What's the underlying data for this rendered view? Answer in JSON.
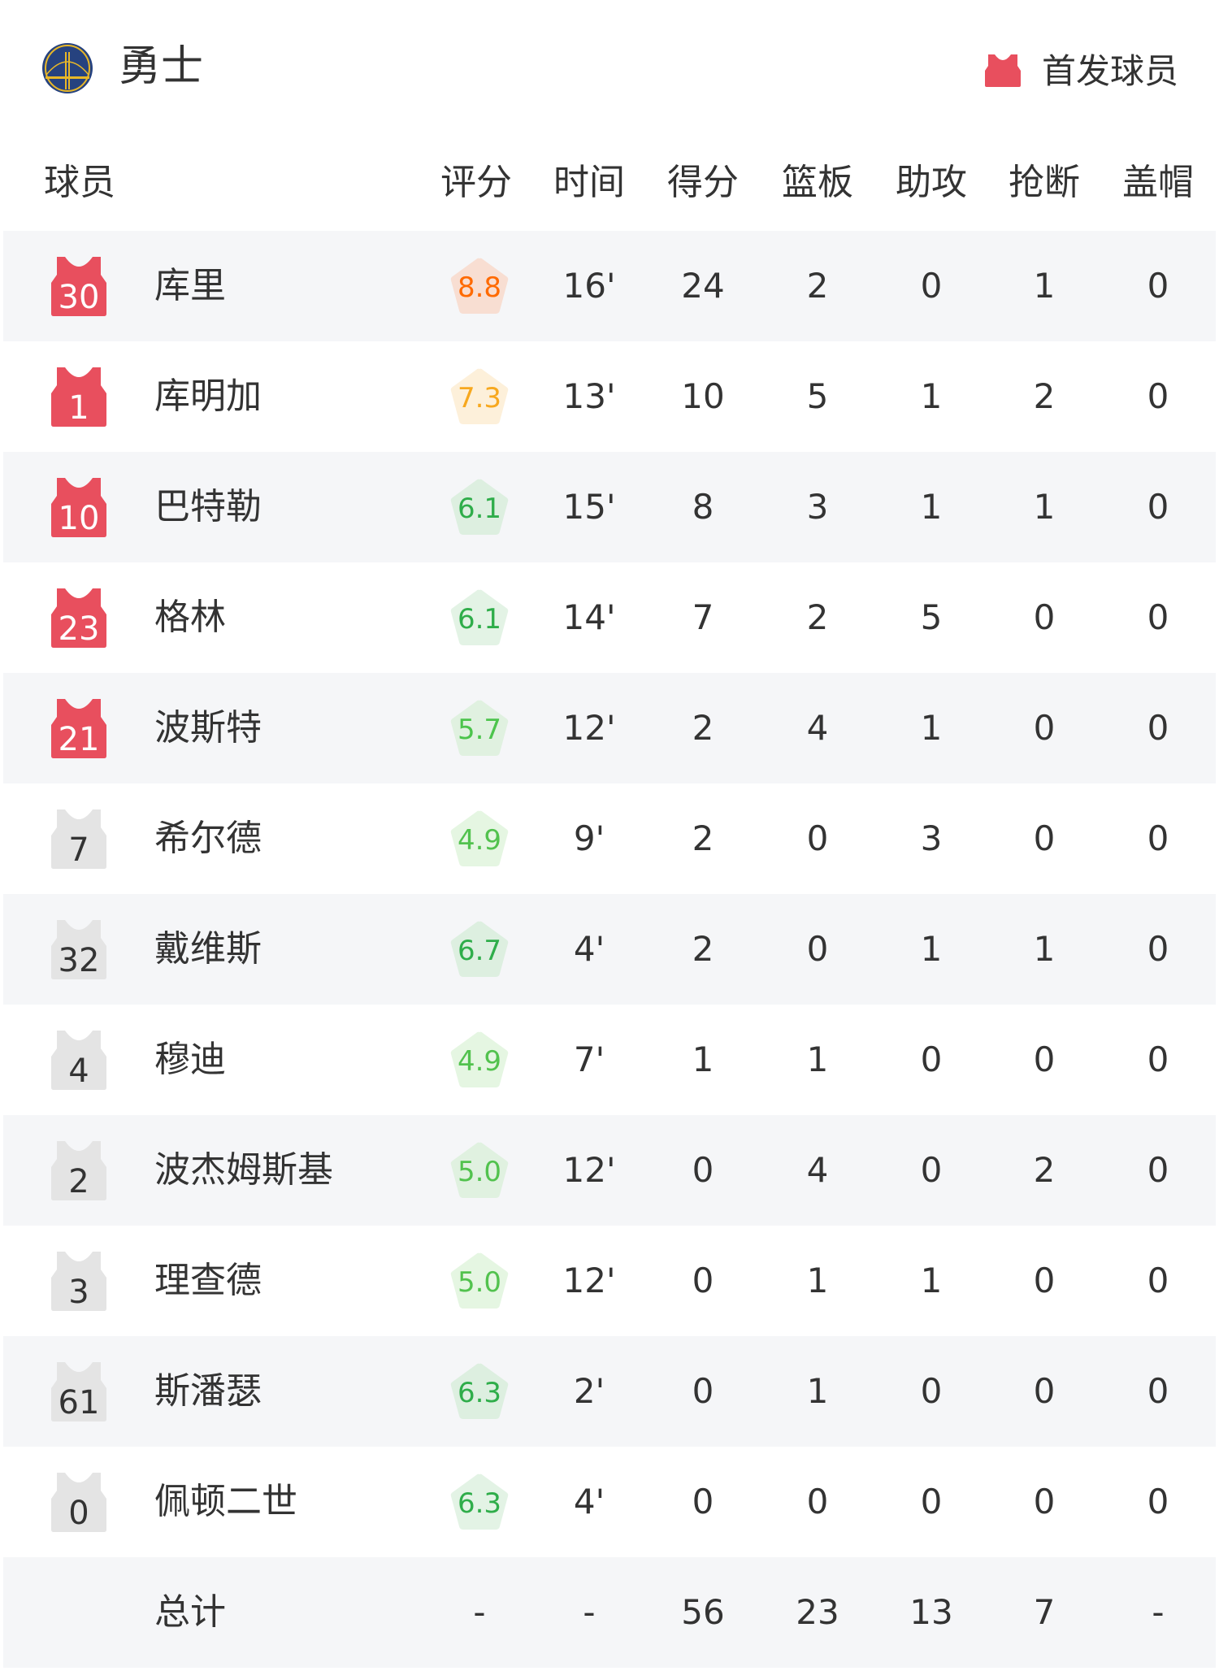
{
  "header": {
    "team_name": "勇士",
    "legend_label": "首发球员",
    "starter_color": "#e84f5e",
    "bench_color": "#e4e4e4"
  },
  "columns": [
    "球员",
    "评分",
    "时间",
    "得分",
    "篮板",
    "助攻",
    "抢断",
    "盖帽"
  ],
  "players": [
    {
      "number": "30",
      "name": "库里",
      "starter": true,
      "rating": "8.8",
      "rating_color": "#ff6a00",
      "rating_bg": "#f8ded2",
      "time": "16'",
      "pts": "24",
      "reb": "2",
      "ast": "0",
      "stl": "1",
      "blk": "0"
    },
    {
      "number": "1",
      "name": "库明加",
      "starter": true,
      "rating": "7.3",
      "rating_color": "#f7a81e",
      "rating_bg": "#fdf0da",
      "time": "13'",
      "pts": "10",
      "reb": "5",
      "ast": "1",
      "stl": "2",
      "blk": "0"
    },
    {
      "number": "10",
      "name": "巴特勒",
      "starter": true,
      "rating": "6.1",
      "rating_color": "#2fad4a",
      "rating_bg": "#ddefe0",
      "time": "15'",
      "pts": "8",
      "reb": "3",
      "ast": "1",
      "stl": "1",
      "blk": "0"
    },
    {
      "number": "23",
      "name": "格林",
      "starter": true,
      "rating": "6.1",
      "rating_color": "#2fad4a",
      "rating_bg": "#e3f3e5",
      "time": "14'",
      "pts": "7",
      "reb": "2",
      "ast": "5",
      "stl": "0",
      "blk": "0"
    },
    {
      "number": "21",
      "name": "波斯特",
      "starter": true,
      "rating": "5.7",
      "rating_color": "#4cc44c",
      "rating_bg": "#e0f1e0",
      "time": "12'",
      "pts": "2",
      "reb": "4",
      "ast": "1",
      "stl": "0",
      "blk": "0"
    },
    {
      "number": "7",
      "name": "希尔德",
      "starter": false,
      "rating": "4.9",
      "rating_color": "#52c24e",
      "rating_bg": "#e5f6e2",
      "time": "9'",
      "pts": "2",
      "reb": "0",
      "ast": "3",
      "stl": "0",
      "blk": "0"
    },
    {
      "number": "32",
      "name": "戴维斯",
      "starter": false,
      "rating": "6.7",
      "rating_color": "#2fad4a",
      "rating_bg": "#ddefe0",
      "time": "4'",
      "pts": "2",
      "reb": "0",
      "ast": "1",
      "stl": "1",
      "blk": "0"
    },
    {
      "number": "4",
      "name": "穆迪",
      "starter": false,
      "rating": "4.9",
      "rating_color": "#52c24e",
      "rating_bg": "#e5f6e2",
      "time": "7'",
      "pts": "1",
      "reb": "1",
      "ast": "0",
      "stl": "0",
      "blk": "0"
    },
    {
      "number": "2",
      "name": "波杰姆斯基",
      "starter": false,
      "rating": "5.0",
      "rating_color": "#52c24e",
      "rating_bg": "#e0f1e0",
      "time": "12'",
      "pts": "0",
      "reb": "4",
      "ast": "0",
      "stl": "2",
      "blk": "0"
    },
    {
      "number": "3",
      "name": "理查德",
      "starter": false,
      "rating": "5.0",
      "rating_color": "#52c24e",
      "rating_bg": "#e5f6e2",
      "time": "12'",
      "pts": "0",
      "reb": "1",
      "ast": "1",
      "stl": "0",
      "blk": "0"
    },
    {
      "number": "61",
      "name": "斯潘瑟",
      "starter": false,
      "rating": "6.3",
      "rating_color": "#2fad4a",
      "rating_bg": "#ddefe0",
      "time": "2'",
      "pts": "0",
      "reb": "1",
      "ast": "0",
      "stl": "0",
      "blk": "0"
    },
    {
      "number": "0",
      "name": "佩顿二世",
      "starter": false,
      "rating": "6.3",
      "rating_color": "#2fad4a",
      "rating_bg": "#e3f3e5",
      "time": "4'",
      "pts": "0",
      "reb": "0",
      "ast": "0",
      "stl": "0",
      "blk": "0"
    }
  ],
  "totals": {
    "label": "总计",
    "rating": "-",
    "time": "-",
    "pts": "56",
    "reb": "23",
    "ast": "13",
    "stl": "7",
    "blk": "-"
  }
}
